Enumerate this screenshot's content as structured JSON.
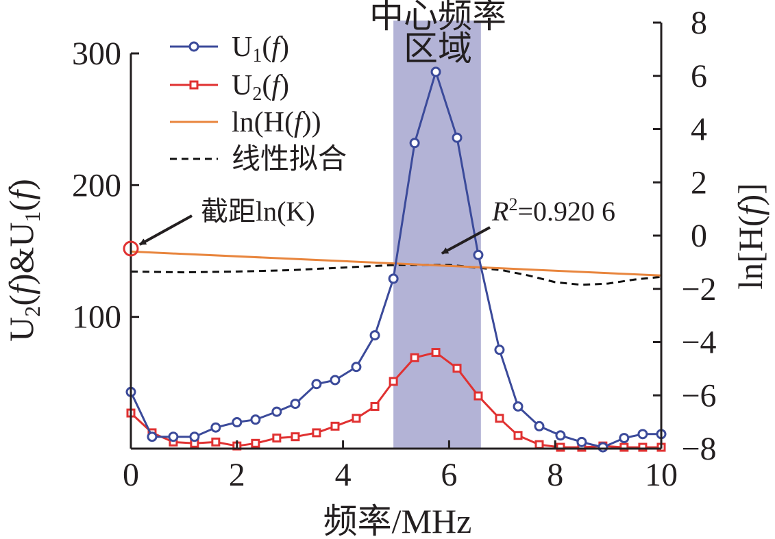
{
  "chart_data": {
    "type": "line",
    "x_axis": {
      "label": "频率/MHz",
      "range": [
        0,
        10
      ],
      "ticks": [
        "0",
        "2",
        "4",
        "6",
        "8",
        "10"
      ]
    },
    "y_left_axis": {
      "label": "U2(f)&U1(f)",
      "range": [
        0,
        300
      ],
      "ticks": [
        "100",
        "200",
        "300"
      ]
    },
    "y_right_axis": {
      "label": "ln[H(f)]",
      "range": [
        -8,
        8
      ],
      "ticks": [
        "-8",
        "-6",
        "-4",
        "-2",
        "0",
        "2",
        "4",
        "6",
        "8"
      ]
    },
    "legend": {
      "placement": "top-left",
      "entries": [
        "U1(f)",
        "U2(f)",
        "ln(H(f))",
        "线性拟合"
      ]
    },
    "shaded_region": {
      "label_line1": "中心频率",
      "label_line2": "区域",
      "x_range": [
        4.95,
        6.6
      ],
      "color": "#b3b3d6"
    },
    "annotations": {
      "intercept": "截距ln(K)",
      "r2_symbol": "R",
      "r2_sup": "2",
      "r2_value": "=0.920 6"
    },
    "series": [
      {
        "name": "U1(f)",
        "axis": "left",
        "color": "#3b4a9a",
        "marker": "circle",
        "x": [
          0,
          0.4,
          0.8,
          1.2,
          1.6,
          2.0,
          2.35,
          2.75,
          3.1,
          3.5,
          3.85,
          4.25,
          4.6,
          4.95,
          5.35,
          5.75,
          6.15,
          6.55,
          6.95,
          7.3,
          7.7,
          8.1,
          8.5,
          8.9,
          9.3,
          9.65,
          10.0
        ],
        "y": [
          43,
          9,
          9,
          9,
          16,
          20,
          22,
          28,
          34,
          49,
          52,
          62,
          86,
          129,
          232,
          286,
          236,
          147,
          75,
          32,
          17,
          10,
          5,
          1,
          8,
          11,
          11
        ]
      },
      {
        "name": "U2(f)",
        "axis": "left",
        "color": "#e03131",
        "marker": "square",
        "x": [
          0,
          0.4,
          0.8,
          1.2,
          1.6,
          2.0,
          2.35,
          2.75,
          3.1,
          3.5,
          3.85,
          4.25,
          4.6,
          4.95,
          5.35,
          5.75,
          6.15,
          6.55,
          6.95,
          7.3,
          7.7,
          8.1,
          8.5,
          8.9,
          9.3,
          9.65,
          10.0
        ],
        "y": [
          27,
          12,
          5,
          4,
          5,
          2,
          4,
          8,
          9,
          12,
          17,
          23,
          32,
          51,
          69,
          73,
          61,
          40,
          23,
          10,
          3,
          1,
          1,
          2,
          1,
          1,
          1
        ]
      },
      {
        "name": "ln(H(f))",
        "axis": "right",
        "color": "#e8853d",
        "marker": "none",
        "x": [
          0,
          10
        ],
        "y": [
          -0.6,
          -1.5
        ]
      },
      {
        "name": "线性拟合",
        "axis": "right",
        "color": "#111111",
        "marker": "none",
        "dash": true,
        "x": [
          0,
          1,
          2,
          3,
          4,
          5,
          6,
          7,
          7.5,
          8,
          8.5,
          9,
          9.5,
          10
        ],
        "y": [
          -1.35,
          -1.38,
          -1.35,
          -1.3,
          -1.2,
          -1.1,
          -1.1,
          -1.3,
          -1.5,
          -1.75,
          -1.85,
          -1.8,
          -1.65,
          -1.55
        ]
      }
    ]
  }
}
